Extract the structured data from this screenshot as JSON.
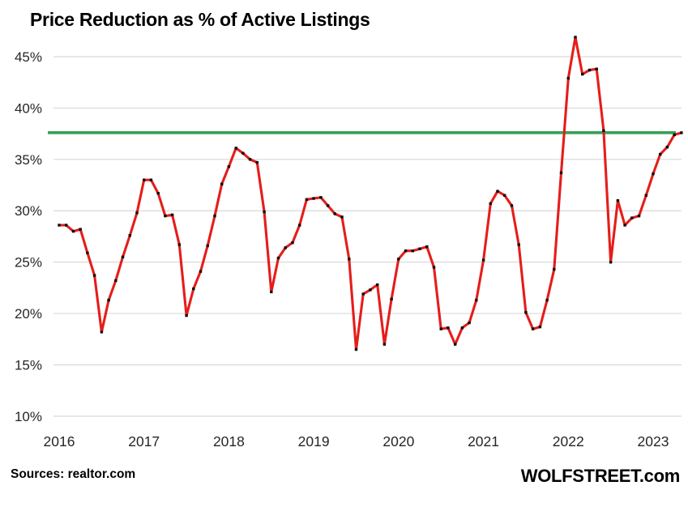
{
  "title": "Price Reduction as % of Active Listings",
  "footer": {
    "sources": "Sources: realtor.com",
    "brand": "WOLFSTREET.com"
  },
  "colors": {
    "line": "#e51d1a",
    "marker": "#0d0d0d",
    "reference_line": "#35a156",
    "grid": "#d9d9d9",
    "axis_text": "#262626",
    "title_text": "#000000",
    "background": "#ffffff"
  },
  "chart_data": {
    "type": "line",
    "title": "Price Reduction as % of Active Listings",
    "xlabel": "",
    "ylabel": "",
    "frequency": "monthly",
    "x_start": "2016-01",
    "x_end": "2023-05",
    "x_tick_labels": [
      "2016",
      "2017",
      "2018",
      "2019",
      "2020",
      "2021",
      "2022",
      "2023"
    ],
    "y_ticks": [
      45,
      40,
      35,
      30,
      25,
      20,
      15,
      10
    ],
    "y_tick_labels": [
      "45%",
      "40%",
      "35%",
      "30%",
      "25%",
      "20%",
      "15%",
      "10%"
    ],
    "ylim": [
      8.8,
      47.6
    ],
    "grid": "horizontal",
    "legend": "none",
    "reference_line": {
      "value": 37.6,
      "style": "solid-green-horizontal"
    },
    "series": [
      {
        "name": "Price reductions as % of active listings",
        "marker": "small-black-square",
        "values": [
          28.6,
          28.6,
          28.0,
          28.2,
          25.9,
          23.7,
          18.2,
          21.3,
          23.2,
          25.5,
          27.6,
          29.8,
          33.0,
          33.0,
          31.7,
          29.5,
          29.6,
          26.7,
          19.8,
          22.4,
          24.1,
          26.6,
          29.5,
          32.6,
          34.3,
          36.1,
          35.6,
          35.0,
          34.7,
          29.9,
          22.1,
          25.4,
          26.4,
          26.9,
          28.6,
          31.1,
          31.2,
          31.3,
          30.5,
          29.7,
          29.4,
          25.3,
          16.5,
          21.9,
          22.3,
          22.8,
          17.0,
          21.4,
          25.3,
          26.1,
          26.1,
          26.3,
          26.5,
          24.5,
          18.5,
          18.6,
          17.0,
          18.6,
          19.1,
          21.3,
          25.2,
          30.7,
          31.9,
          31.5,
          30.5,
          26.7,
          20.1,
          18.5,
          18.7,
          21.3,
          24.3,
          33.7,
          42.9,
          46.9,
          43.3,
          43.7,
          43.8,
          37.8,
          25.0,
          31.0,
          28.6,
          29.3,
          29.5,
          31.5,
          33.6,
          35.5,
          36.2,
          37.4,
          37.6
        ]
      }
    ]
  }
}
